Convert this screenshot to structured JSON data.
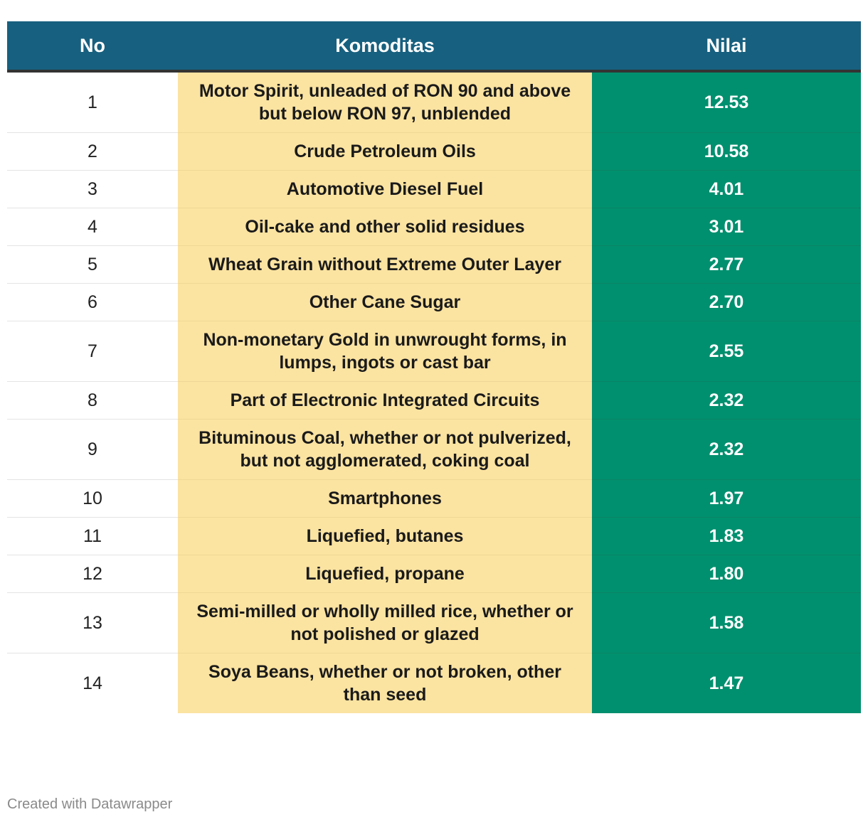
{
  "chart_data": {
    "type": "table",
    "columns": [
      "No",
      "Komoditas",
      "Nilai"
    ],
    "rows": [
      {
        "no": "1",
        "komoditas": "Motor Spirit, unleaded of RON 90 and above but below RON 97, unblended",
        "nilai": "12.53"
      },
      {
        "no": "2",
        "komoditas": "Crude Petroleum Oils",
        "nilai": "10.58"
      },
      {
        "no": "3",
        "komoditas": "Automotive Diesel Fuel",
        "nilai": "4.01"
      },
      {
        "no": "4",
        "komoditas": "Oil-cake and other solid residues",
        "nilai": "3.01"
      },
      {
        "no": "5",
        "komoditas": "Wheat Grain without Extreme Outer Layer",
        "nilai": "2.77"
      },
      {
        "no": "6",
        "komoditas": "Other Cane Sugar",
        "nilai": "2.70"
      },
      {
        "no": "7",
        "komoditas": "Non-monetary Gold in unwrought forms, in lumps, ingots or cast bar",
        "nilai": "2.55"
      },
      {
        "no": "8",
        "komoditas": "Part of Electronic Integrated Circuits",
        "nilai": "2.32"
      },
      {
        "no": "9",
        "komoditas": "Bituminous Coal, whether or not pulverized, but not agglomerated, coking coal",
        "nilai": "2.32"
      },
      {
        "no": "10",
        "komoditas": "Smartphones",
        "nilai": "1.97"
      },
      {
        "no": "11",
        "komoditas": "Liquefied, butanes",
        "nilai": "1.83"
      },
      {
        "no": "12",
        "komoditas": "Liquefied, propane",
        "nilai": "1.80"
      },
      {
        "no": "13",
        "komoditas": "Semi-milled or wholly milled rice, whether or not polished or glazed",
        "nilai": "1.58"
      },
      {
        "no": "14",
        "komoditas": "Soya Beans, whether or not broken, other than seed",
        "nilai": "1.47"
      }
    ],
    "colors": {
      "header": "#18607f",
      "komoditas_column": "#fbe3a1",
      "nilai_column": "#00906f"
    }
  },
  "footer": {
    "credit": "Created with Datawrapper"
  }
}
